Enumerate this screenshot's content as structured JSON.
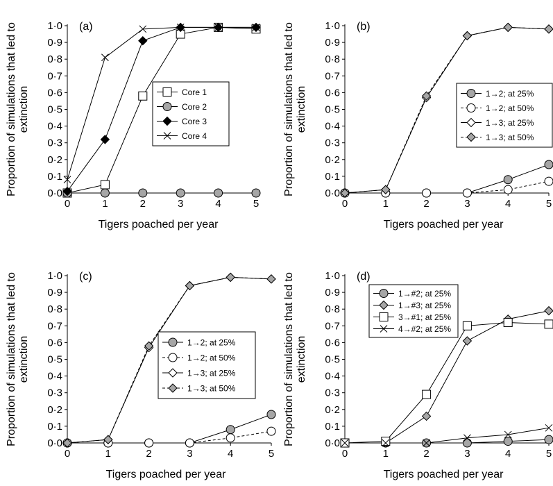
{
  "chart_data": [
    {
      "type": "line",
      "panel_label": "(a)",
      "xlabel": "Tigers poached per year",
      "ylabel": "Proportion of simulations that led to extinction",
      "x_ticks": [
        "0",
        "1",
        "2",
        "3",
        "4",
        "5"
      ],
      "y_ticks": [
        "0·0",
        "0·1",
        "0·2",
        "0·3",
        "0·4",
        "0·5",
        "0·6",
        "0·7",
        "0·8",
        "0·9",
        "1·0"
      ],
      "xlim": [
        0,
        5
      ],
      "ylim": [
        0,
        1
      ],
      "legend_position": "right",
      "x": [
        0,
        1,
        2,
        3,
        4,
        5
      ],
      "series": [
        {
          "name": "Core 1",
          "marker": "square-open",
          "dash": "solid",
          "values": [
            0.0,
            0.05,
            0.58,
            0.95,
            0.99,
            0.98
          ]
        },
        {
          "name": "Core 2",
          "marker": "circle-gray",
          "dash": "solid",
          "values": [
            0.0,
            0.0,
            0.0,
            0.0,
            0.0,
            0.0
          ]
        },
        {
          "name": "Core 3",
          "marker": "diamond-black",
          "dash": "solid",
          "values": [
            0.01,
            0.32,
            0.91,
            0.99,
            0.99,
            0.99
          ]
        },
        {
          "name": "Core 4",
          "marker": "cross",
          "dash": "solid",
          "values": [
            0.08,
            0.81,
            0.98,
            0.99,
            0.99,
            0.99
          ]
        }
      ]
    },
    {
      "type": "line",
      "panel_label": "(b)",
      "xlabel": "Tigers poached per year",
      "ylabel": "Proportion of simulations that led to extinction",
      "x_ticks": [
        "0",
        "1",
        "2",
        "3",
        "4",
        "5"
      ],
      "y_ticks": [
        "0·0",
        "0·1",
        "0·2",
        "0·3",
        "0·4",
        "0·5",
        "0·6",
        "0·7",
        "0·8",
        "0·9",
        "1·0"
      ],
      "xlim": [
        0,
        5
      ],
      "ylim": [
        0,
        1
      ],
      "legend_position": "right",
      "x": [
        0,
        1,
        2,
        3,
        4,
        5
      ],
      "series": [
        {
          "name": "1→2; at 25%",
          "marker": "circle-gray",
          "dash": "solid",
          "values": [
            0.0,
            0.0,
            0.0,
            0.0,
            0.08,
            0.17
          ]
        },
        {
          "name": "1→2; at 50%",
          "marker": "circle-open",
          "dash": "dashed",
          "values": [
            0.0,
            0.0,
            0.0,
            0.0,
            0.02,
            0.07
          ]
        },
        {
          "name": "1→3; at 25%",
          "marker": "diamond-open",
          "dash": "solid",
          "values": [
            0.0,
            0.02,
            0.57,
            0.94,
            0.99,
            0.98
          ]
        },
        {
          "name": "1→3; at 50%",
          "marker": "diamond-gray",
          "dash": "dashed",
          "values": [
            0.0,
            0.02,
            0.58,
            0.94,
            0.99,
            0.98
          ]
        }
      ]
    },
    {
      "type": "line",
      "panel_label": "(c)",
      "xlabel": "Tigers poached per year",
      "ylabel": "Proportion of simulations that led to extinction",
      "x_ticks": [
        "0",
        "1",
        "2",
        "3",
        "4",
        "5"
      ],
      "y_ticks": [
        "0·0",
        "0·1",
        "0·2",
        "0·3",
        "0·4",
        "0·5",
        "0·6",
        "0·7",
        "0·8",
        "0·9",
        "1·0"
      ],
      "xlim": [
        0,
        5
      ],
      "ylim": [
        0,
        1
      ],
      "legend_position": "right",
      "x": [
        0,
        1,
        2,
        3,
        4,
        5
      ],
      "series": [
        {
          "name": "1→2; at 25%",
          "marker": "circle-gray",
          "dash": "solid",
          "values": [
            0.0,
            0.0,
            0.0,
            0.0,
            0.08,
            0.17
          ]
        },
        {
          "name": "1→2; at 50%",
          "marker": "circle-open",
          "dash": "dashed",
          "values": [
            0.0,
            0.0,
            0.0,
            0.0,
            0.03,
            0.07
          ]
        },
        {
          "name": "1→3; at 25%",
          "marker": "diamond-open",
          "dash": "solid",
          "values": [
            0.0,
            0.02,
            0.57,
            0.94,
            0.99,
            0.98
          ]
        },
        {
          "name": "1→3; at 50%",
          "marker": "diamond-gray",
          "dash": "dashed",
          "values": [
            0.0,
            0.02,
            0.58,
            0.94,
            0.99,
            0.98
          ]
        }
      ]
    },
    {
      "type": "line",
      "panel_label": "(d)",
      "xlabel": "Tigers poached per year",
      "ylabel": "Proportion of simulations that led to extinction",
      "x_ticks": [
        "0",
        "1",
        "2",
        "3",
        "4",
        "5"
      ],
      "y_ticks": [
        "0·0",
        "0·1",
        "0·2",
        "0·3",
        "0·4",
        "0·5",
        "0·6",
        "0·7",
        "0·8",
        "0·9",
        "1·0"
      ],
      "xlim": [
        0,
        5
      ],
      "ylim": [
        0,
        1
      ],
      "legend_position": "top-left",
      "x": [
        0,
        1,
        2,
        3,
        4,
        5
      ],
      "series": [
        {
          "name": "1→#2; at 25%",
          "marker": "circle-gray",
          "dash": "solid",
          "values": [
            0.0,
            0.0,
            0.0,
            0.0,
            0.01,
            0.02
          ]
        },
        {
          "name": "1→#3; at 25%",
          "marker": "diamond-gray",
          "dash": "solid",
          "values": [
            0.0,
            0.0,
            0.16,
            0.61,
            0.74,
            0.79
          ]
        },
        {
          "name": "3→#1; at 25%",
          "marker": "square-open",
          "dash": "solid",
          "values": [
            0.0,
            0.01,
            0.29,
            0.7,
            0.72,
            0.71
          ]
        },
        {
          "name": "4→#2; at 25%",
          "marker": "cross",
          "dash": "solid",
          "values": [
            0.0,
            0.0,
            0.0,
            0.03,
            0.05,
            0.09
          ]
        }
      ]
    }
  ]
}
